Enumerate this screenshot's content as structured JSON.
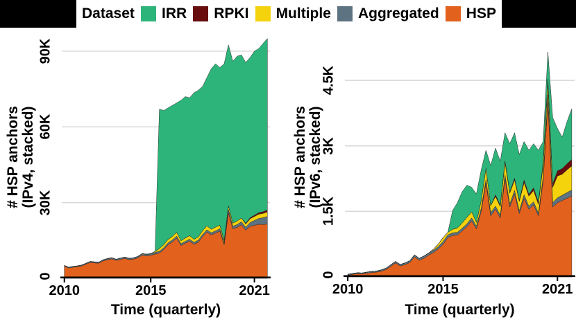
{
  "legend": {
    "title": "Dataset",
    "entries": [
      {
        "label": "IRR",
        "color": "#2db47a"
      },
      {
        "label": "RPKI",
        "color": "#670d0e"
      },
      {
        "label": "Multiple",
        "color": "#f4d20c"
      },
      {
        "label": "Aggregated",
        "color": "#5e7381"
      },
      {
        "label": "HSP",
        "color": "#e2611c"
      }
    ]
  },
  "style_colors": {
    "gridline": "#d8d8d8",
    "axis": "#000000",
    "background": "#ffffff"
  },
  "chart_data": [
    {
      "type": "area",
      "stacked": true,
      "xlabel": "Time (quarterly)",
      "ylabel_line1": "# HSP anchors",
      "ylabel_line2": "(IPv4, stacked)",
      "xlim": [
        2010,
        2021.75
      ],
      "ylim": [
        0,
        96000
      ],
      "grid": "horizontal-only",
      "x_ticks": [
        {
          "v": 2010,
          "label": "2010"
        },
        {
          "v": 2015,
          "label": "2015"
        },
        {
          "v": 2021,
          "label": "2021"
        }
      ],
      "y_ticks": [
        {
          "v": 0,
          "label": "0"
        },
        {
          "v": 30000,
          "label": "30K"
        },
        {
          "v": 60000,
          "label": "60K"
        },
        {
          "v": 90000,
          "label": "90K"
        }
      ],
      "grid_values": [
        30000,
        60000,
        90000
      ],
      "x": [
        2010,
        2010.25,
        2010.5,
        2010.75,
        2011,
        2011.25,
        2011.5,
        2011.75,
        2012,
        2012.25,
        2012.5,
        2012.75,
        2013,
        2013.25,
        2013.5,
        2013.75,
        2014,
        2014.25,
        2014.5,
        2014.75,
        2015,
        2015.25,
        2015.5,
        2015.75,
        2016,
        2016.25,
        2016.5,
        2016.75,
        2017,
        2017.25,
        2017.5,
        2017.75,
        2018,
        2018.25,
        2018.5,
        2018.75,
        2019,
        2019.25,
        2019.5,
        2019.75,
        2020,
        2020.25,
        2020.5,
        2020.75,
        2021,
        2021.25,
        2021.5,
        2021.75
      ],
      "series": [
        {
          "name": "HSP",
          "color": "#e2611c",
          "values": [
            4800,
            4100,
            4400,
            4600,
            4900,
            5600,
            6300,
            6100,
            6000,
            6900,
            7400,
            7700,
            7100,
            7500,
            7900,
            7400,
            7600,
            8100,
            9200,
            8900,
            9100,
            9600,
            10000,
            11400,
            13300,
            14400,
            15900,
            13000,
            13900,
            14700,
            13500,
            14300,
            16500,
            18300,
            17200,
            17900,
            18700,
            13300,
            26000,
            19600,
            20200,
            21200,
            19100,
            20600,
            21000,
            21400,
            21300,
            21500
          ]
        },
        {
          "name": "Aggregated",
          "color": "#5e7381",
          "values": [
            300,
            300,
            300,
            300,
            350,
            350,
            400,
            400,
            400,
            450,
            450,
            450,
            450,
            500,
            500,
            500,
            500,
            550,
            600,
            600,
            600,
            650,
            700,
            700,
            750,
            800,
            800,
            700,
            750,
            800,
            750,
            800,
            850,
            900,
            850,
            900,
            900,
            700,
            1200,
            1000,
            1100,
            1200,
            1100,
            1500,
            1900,
            2300,
            2700,
            3000
          ]
        },
        {
          "name": "Multiple",
          "color": "#f4d20c",
          "values": [
            0,
            0,
            0,
            0,
            0,
            0,
            0,
            0,
            0,
            0,
            0,
            0,
            0,
            0,
            0,
            0,
            0,
            0,
            0,
            50,
            100,
            400,
            1100,
            1200,
            1300,
            1400,
            1500,
            1200,
            1300,
            1400,
            1200,
            1300,
            1500,
            1600,
            1400,
            1500,
            1500,
            1000,
            1600,
            1300,
            1400,
            1500,
            1300,
            1500,
            1600,
            1700,
            1700,
            1800
          ]
        },
        {
          "name": "RPKI",
          "color": "#670d0e",
          "values": [
            0,
            0,
            0,
            0,
            0,
            0,
            0,
            0,
            0,
            0,
            0,
            0,
            0,
            0,
            0,
            0,
            0,
            0,
            0,
            0,
            0,
            0,
            0,
            0,
            0,
            0,
            0,
            0,
            0,
            0,
            0,
            0,
            0,
            0,
            0,
            0,
            0,
            0,
            0,
            0,
            0,
            0,
            300,
            400,
            500,
            600,
            700,
            800
          ]
        },
        {
          "name": "IRR",
          "color": "#2db47a",
          "values": [
            0,
            0,
            0,
            0,
            0,
            0,
            0,
            0,
            0,
            0,
            0,
            0,
            0,
            0,
            0,
            0,
            0,
            0,
            0,
            0,
            0,
            0,
            55200,
            53200,
            52150,
            51900,
            51300,
            55600,
            56050,
            54600,
            58050,
            58100,
            57150,
            58700,
            63550,
            64700,
            62400,
            70000,
            63700,
            64100,
            65300,
            64600,
            63700,
            63500,
            65000,
            65000,
            66600,
            67900
          ]
        }
      ]
    },
    {
      "type": "area",
      "stacked": true,
      "xlabel": "Time (quarterly)",
      "ylabel_line1": "# HSP anchors",
      "ylabel_line2": "(IPv6, stacked)",
      "xlim": [
        2010,
        2021.75
      ],
      "ylim": [
        0,
        5515
      ],
      "grid": "horizontal-only",
      "x_ticks": [
        {
          "v": 2010,
          "label": "2010"
        },
        {
          "v": 2015,
          "label": "2015"
        },
        {
          "v": 2021,
          "label": "2021"
        }
      ],
      "y_ticks": [
        {
          "v": 0,
          "label": "0"
        },
        {
          "v": 1500,
          "label": "1.5K"
        },
        {
          "v": 3000,
          "label": "3K"
        },
        {
          "v": 4500,
          "label": "4.5K"
        }
      ],
      "grid_values": [
        1500,
        3000,
        4500
      ],
      "x": [
        2010,
        2010.25,
        2010.5,
        2010.75,
        2011,
        2011.25,
        2011.5,
        2011.75,
        2012,
        2012.25,
        2012.5,
        2012.75,
        2013,
        2013.25,
        2013.5,
        2013.75,
        2014,
        2014.25,
        2014.5,
        2014.75,
        2015,
        2015.25,
        2015.5,
        2015.75,
        2016,
        2016.25,
        2016.5,
        2016.75,
        2017,
        2017.25,
        2017.5,
        2017.75,
        2018,
        2018.25,
        2018.5,
        2018.75,
        2019,
        2019.25,
        2019.5,
        2019.75,
        2020,
        2020.25,
        2020.5,
        2020.75,
        2021,
        2021.25,
        2021.5,
        2021.75
      ],
      "series": [
        {
          "name": "HSP",
          "color": "#e2611c",
          "values": [
            40,
            60,
            75,
            70,
            85,
            100,
            110,
            130,
            170,
            240,
            320,
            250,
            280,
            330,
            460,
            380,
            430,
            500,
            560,
            640,
            750,
            900,
            950,
            960,
            1050,
            1150,
            1280,
            1100,
            1500,
            2150,
            1400,
            1550,
            1350,
            2250,
            1600,
            1900,
            1450,
            1800,
            1550,
            1650,
            1400,
            2200,
            4050,
            1600,
            1700,
            1750,
            1800,
            1850
          ]
        },
        {
          "name": "Aggregated",
          "color": "#5e7381",
          "values": [
            20,
            20,
            20,
            20,
            25,
            25,
            25,
            30,
            30,
            35,
            35,
            35,
            40,
            40,
            45,
            45,
            50,
            50,
            55,
            55,
            60,
            60,
            60,
            60,
            65,
            65,
            70,
            60,
            70,
            80,
            70,
            70,
            60,
            90,
            70,
            80,
            60,
            80,
            70,
            70,
            60,
            90,
            120,
            100,
            110,
            120,
            130,
            140
          ]
        },
        {
          "name": "Multiple",
          "color": "#f4d20c",
          "values": [
            0,
            0,
            0,
            0,
            0,
            0,
            0,
            0,
            0,
            0,
            0,
            0,
            0,
            0,
            0,
            0,
            0,
            0,
            20,
            60,
            90,
            60,
            80,
            100,
            120,
            150,
            140,
            90,
            180,
            260,
            160,
            220,
            200,
            280,
            250,
            240,
            220,
            280,
            230,
            260,
            200,
            280,
            300,
            350,
            500,
            480,
            520,
            550
          ]
        },
        {
          "name": "RPKI",
          "color": "#670d0e",
          "values": [
            0,
            0,
            0,
            0,
            0,
            0,
            0,
            0,
            0,
            0,
            0,
            0,
            0,
            0,
            0,
            0,
            0,
            0,
            0,
            0,
            0,
            0,
            0,
            0,
            0,
            0,
            0,
            0,
            0,
            0,
            0,
            40,
            30,
            40,
            30,
            40,
            30,
            60,
            40,
            60,
            50,
            60,
            60,
            80,
            120,
            130,
            140,
            150
          ]
        },
        {
          "name": "IRR",
          "color": "#2db47a",
          "values": [
            0,
            0,
            0,
            0,
            0,
            0,
            0,
            0,
            0,
            0,
            0,
            0,
            0,
            0,
            0,
            0,
            0,
            0,
            0,
            0,
            0,
            0,
            430,
            580,
            715,
            735,
            560,
            650,
            700,
            410,
            920,
            1070,
            1010,
            640,
            1100,
            1040,
            1040,
            880,
            1010,
            1010,
            1190,
            470,
            620,
            1520,
            970,
            720,
            960,
            1160
          ]
        }
      ]
    }
  ]
}
